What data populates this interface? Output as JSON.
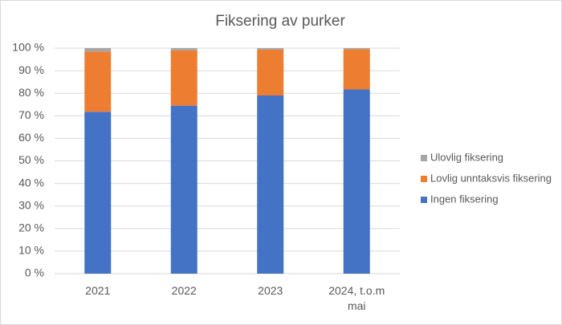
{
  "chart_data": {
    "type": "stacked_bar",
    "title": "Fiksering av purker",
    "categories": [
      "2021",
      "2022",
      "2023",
      "2024, t.o.m mai"
    ],
    "series": [
      {
        "name": "Ingen fiksering",
        "color": "#4472c4",
        "values": [
          71.8,
          74.5,
          79,
          81.7
        ]
      },
      {
        "name": "Lovlig unntaksvis fiksering",
        "color": "#ed7d31",
        "values": [
          26.7,
          24.5,
          20.3,
          17.8
        ]
      },
      {
        "name": "Ulovlig fiksering",
        "color": "#a5a5a5",
        "values": [
          1.5,
          1.0,
          0.7,
          0.5
        ]
      }
    ],
    "ylim": [
      0,
      100
    ],
    "yticks": [
      {
        "value": 0,
        "label": "0 %"
      },
      {
        "value": 10,
        "label": "10 %"
      },
      {
        "value": 20,
        "label": "20 %"
      },
      {
        "value": 30,
        "label": "30 %"
      },
      {
        "value": 40,
        "label": "40 %"
      },
      {
        "value": 50,
        "label": "50 %"
      },
      {
        "value": 60,
        "label": "60 %"
      },
      {
        "value": 70,
        "label": "70 %"
      },
      {
        "value": 80,
        "label": "80 %"
      },
      {
        "value": 90,
        "label": "90 %"
      },
      {
        "value": 100,
        "label": "100 %"
      }
    ],
    "grid": true,
    "legend": "right"
  }
}
